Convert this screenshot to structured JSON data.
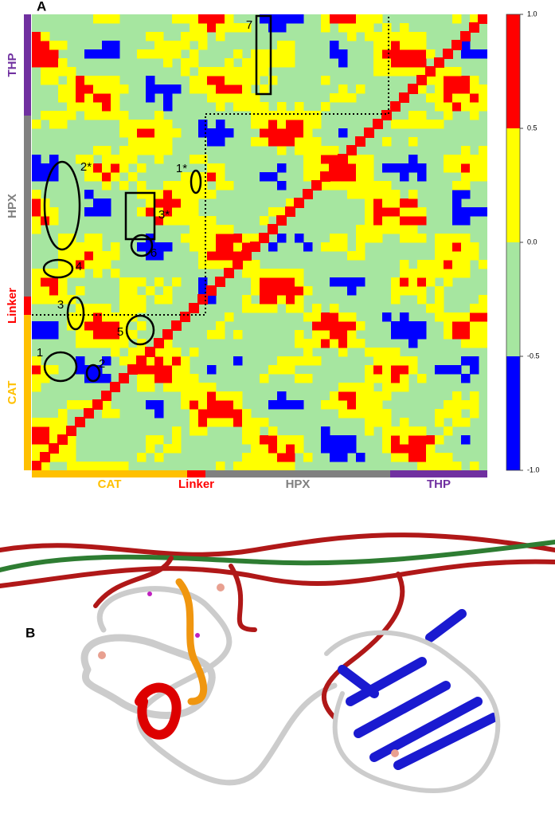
{
  "panel_a": {
    "label": "A",
    "domains_left": [
      "THP",
      "HPX",
      "Linker",
      "CAT"
    ],
    "domains_bottom": [
      "CAT",
      "Linker",
      "HPX",
      "THP"
    ],
    "annotations": [
      "7",
      "2*",
      "1*",
      "3*",
      "6",
      "4",
      "3",
      "5",
      "1",
      "2"
    ],
    "colorbar": {
      "lim": [
        -1,
        1
      ],
      "ticks": [
        {
          "value": 1,
          "label": "1.0"
        },
        0.5,
        {
          "value": 0,
          "label": "0.0"
        },
        -0.5,
        {
          "value": -1,
          "label": "-1.0"
        }
      ],
      "colors": [
        "#ff0000",
        "#ffff00",
        "#a6e6a0",
        "#0000ff"
      ]
    }
  },
  "panel_b": {
    "label": "B"
  }
}
